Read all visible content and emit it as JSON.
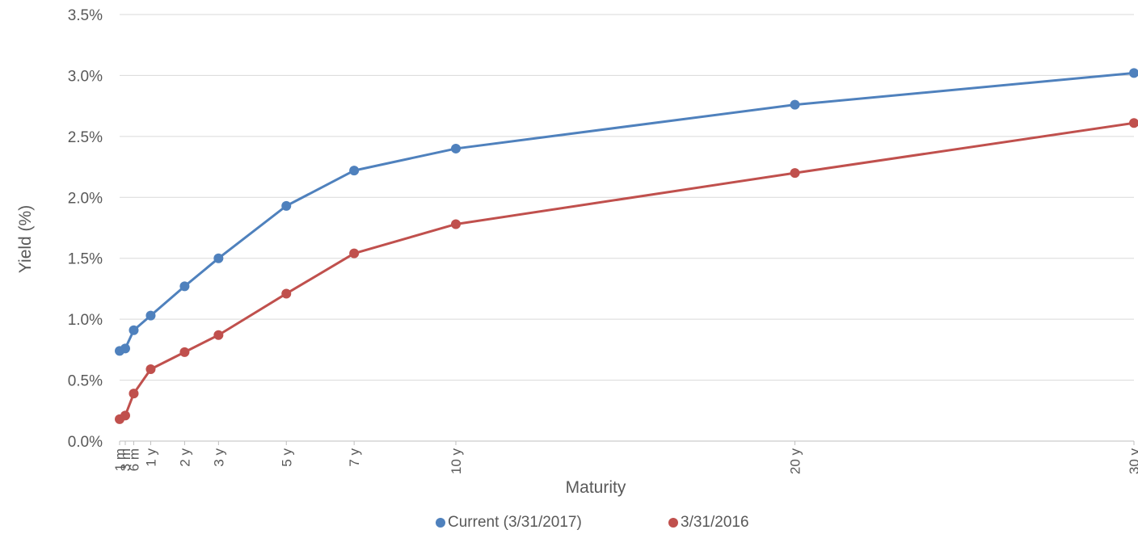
{
  "chart_data": {
    "type": "line",
    "title": "",
    "xlabel": "Maturity",
    "ylabel": "Yield (%)",
    "ylim": [
      0,
      3.5
    ],
    "y_ticks": [
      "0.0%",
      "0.5%",
      "1.0%",
      "1.5%",
      "2.0%",
      "2.5%",
      "3.0%",
      "3.5%"
    ],
    "grid": "horizontal",
    "legend_position": "bottom",
    "x_unit": "years",
    "categories": [
      "1 m",
      "3 m",
      "6 m",
      "1 y",
      "2 y",
      "3 y",
      "5 y",
      "7 y",
      "10 y",
      "20 y",
      "30 y"
    ],
    "x": [
      0.0833,
      0.25,
      0.5,
      1,
      2,
      3,
      5,
      7,
      10,
      20,
      30
    ],
    "series": [
      {
        "name": "Current (3/31/2017)",
        "color": "#4f81bd",
        "values": [
          0.74,
          0.76,
          0.91,
          1.03,
          1.27,
          1.5,
          1.93,
          2.22,
          2.4,
          2.76,
          3.02
        ]
      },
      {
        "name": "3/31/2016",
        "color": "#c0504d",
        "values": [
          0.18,
          0.21,
          0.39,
          0.59,
          0.73,
          0.87,
          1.21,
          1.54,
          1.78,
          2.2,
          2.61
        ]
      }
    ]
  }
}
